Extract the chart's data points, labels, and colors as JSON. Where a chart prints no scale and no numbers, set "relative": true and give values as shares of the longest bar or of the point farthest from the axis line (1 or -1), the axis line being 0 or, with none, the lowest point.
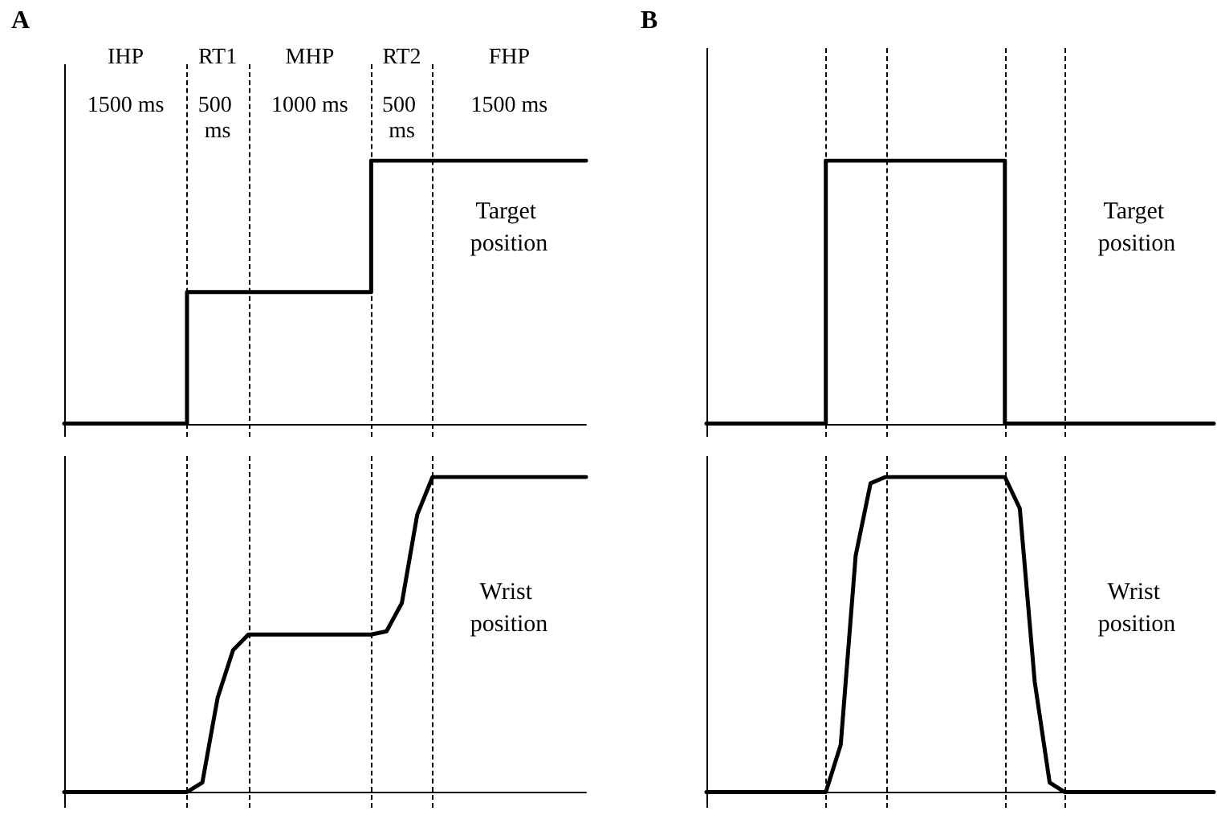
{
  "chart_data": [
    {
      "type": "step",
      "title": "A",
      "relative": true,
      "categories": [
        null,
        null,
        null,
        null,
        null,
        null,
        null,
        null,
        null,
        null,
        null,
        null,
        null,
        null,
        null,
        null,
        null,
        null,
        null,
        null,
        null,
        null,
        null,
        null,
        null,
        null,
        null,
        null,
        null,
        null,
        null,
        null,
        null,
        null,
        null
      ],
      "tick_labels": false,
      "grid": "x",
      "marker": "none",
      "line_style": "solid",
      "series": [
        {
          "color": "#000000",
          "values": [
            0,
            0,
            0,
            0,
            0,
            0,
            0,
            0,
            0.5,
            0.5,
            0.5,
            0.5,
            0.5,
            0.5,
            0.5,
            0.5,
            0.5,
            0.5,
            0.5,
            0.5,
            1,
            1,
            1,
            1,
            1,
            1,
            1,
            1,
            1,
            1,
            1,
            1,
            1,
            1,
            1
          ]
        }
      ],
      "annotations": [
        "IHP",
        "RT1",
        "MHP",
        "RT2",
        "FHP",
        "1500 ms",
        "500 ms",
        "1000 ms",
        "500 ms",
        "1500 ms",
        "Target position"
      ]
    },
    {
      "type": "line",
      "relative": true,
      "categories": [
        null,
        null,
        null,
        null,
        null,
        null,
        null,
        null,
        null,
        null,
        null,
        null,
        null,
        null,
        null,
        null,
        null,
        null,
        null,
        null,
        null,
        null,
        null,
        null,
        null,
        null,
        null,
        null,
        null,
        null,
        null,
        null,
        null,
        null,
        null
      ],
      "tick_labels": false,
      "grid": "x",
      "marker": "none",
      "line_style": "solid",
      "series": [
        {
          "color": "#000000",
          "values": [
            0,
            0,
            0,
            0,
            0,
            0,
            0,
            0,
            0,
            0.03,
            0.3,
            0.45,
            0.5,
            0.5,
            0.5,
            0.5,
            0.5,
            0.5,
            0.5,
            0.5,
            0.5,
            0.51,
            0.6,
            0.88,
            1,
            1,
            1,
            1,
            1,
            1,
            1,
            1,
            1,
            1,
            1
          ]
        }
      ],
      "annotations": [
        "Wrist position"
      ]
    },
    {
      "type": "step",
      "title": "B",
      "relative": true,
      "categories": [
        null,
        null,
        null,
        null,
        null,
        null,
        null,
        null,
        null,
        null,
        null,
        null,
        null,
        null,
        null,
        null,
        null,
        null,
        null,
        null,
        null,
        null,
        null,
        null,
        null,
        null,
        null,
        null,
        null,
        null,
        null,
        null,
        null,
        null,
        null
      ],
      "tick_labels": false,
      "grid": "x",
      "marker": "none",
      "line_style": "solid",
      "series": [
        {
          "color": "#000000",
          "values": [
            0,
            0,
            0,
            0,
            0,
            0,
            0,
            0,
            1,
            1,
            1,
            1,
            1,
            1,
            1,
            1,
            1,
            1,
            1,
            1,
            0,
            0,
            0,
            0,
            0,
            0,
            0,
            0,
            0,
            0,
            0,
            0,
            0,
            0,
            0
          ]
        }
      ],
      "annotations": [
        "Target position"
      ]
    },
    {
      "type": "line",
      "relative": true,
      "categories": [
        null,
        null,
        null,
        null,
        null,
        null,
        null,
        null,
        null,
        null,
        null,
        null,
        null,
        null,
        null,
        null,
        null,
        null,
        null,
        null,
        null,
        null,
        null,
        null,
        null,
        null,
        null,
        null,
        null,
        null,
        null,
        null,
        null,
        null,
        null
      ],
      "tick_labels": false,
      "grid": "x",
      "marker": "none",
      "line_style": "solid",
      "series": [
        {
          "color": "#000000",
          "values": [
            0,
            0,
            0,
            0,
            0,
            0,
            0,
            0,
            0,
            0.15,
            0.75,
            0.98,
            1,
            1,
            1,
            1,
            1,
            1,
            1,
            1,
            1,
            0.9,
            0.35,
            0.03,
            0,
            0,
            0,
            0,
            0,
            0,
            0,
            0,
            0,
            0,
            0
          ]
        }
      ],
      "annotations": [
        "Wrist position"
      ]
    }
  ]
}
